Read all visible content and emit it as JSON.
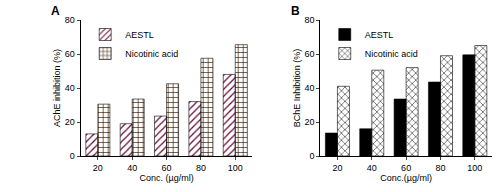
{
  "chart_data": [
    {
      "type": "bar",
      "title": "A",
      "categories": [
        "20",
        "40",
        "60",
        "80",
        "100"
      ],
      "series": [
        {
          "name": "AESTL",
          "color": "#e0307f",
          "values": [
            13,
            19,
            23.5,
            32,
            48
          ]
        },
        {
          "name": "Nicotinic acid",
          "color": "#e2823a",
          "values": [
            30.5,
            33.5,
            42.5,
            57.5,
            65.5
          ]
        }
      ],
      "x_label": "Conc. (µg/ml)",
      "y_label": "AChE inhibition (%)",
      "ylim": [
        0,
        80
      ],
      "yticks": [
        0,
        20,
        40,
        60,
        80
      ],
      "grid": false,
      "legend": "upper left"
    },
    {
      "type": "bar",
      "title": "B",
      "categories": [
        "20",
        "40",
        "60",
        "80",
        "100"
      ],
      "series": [
        {
          "name": "AESTL",
          "color": "#000000",
          "values": [
            13.5,
            16,
            33.5,
            43.5,
            59.5
          ]
        },
        {
          "name": "Nicotinic acid",
          "color": "#c8c8c8",
          "values": [
            41,
            50.5,
            52,
            59,
            65
          ]
        }
      ],
      "x_label": "Conc.(µg/ml)",
      "y_label": "BChE Inhibition (%)",
      "ylim": [
        0,
        80
      ],
      "yticks": [
        0,
        20,
        40,
        60,
        80
      ],
      "grid": false,
      "legend": "upper left"
    }
  ]
}
